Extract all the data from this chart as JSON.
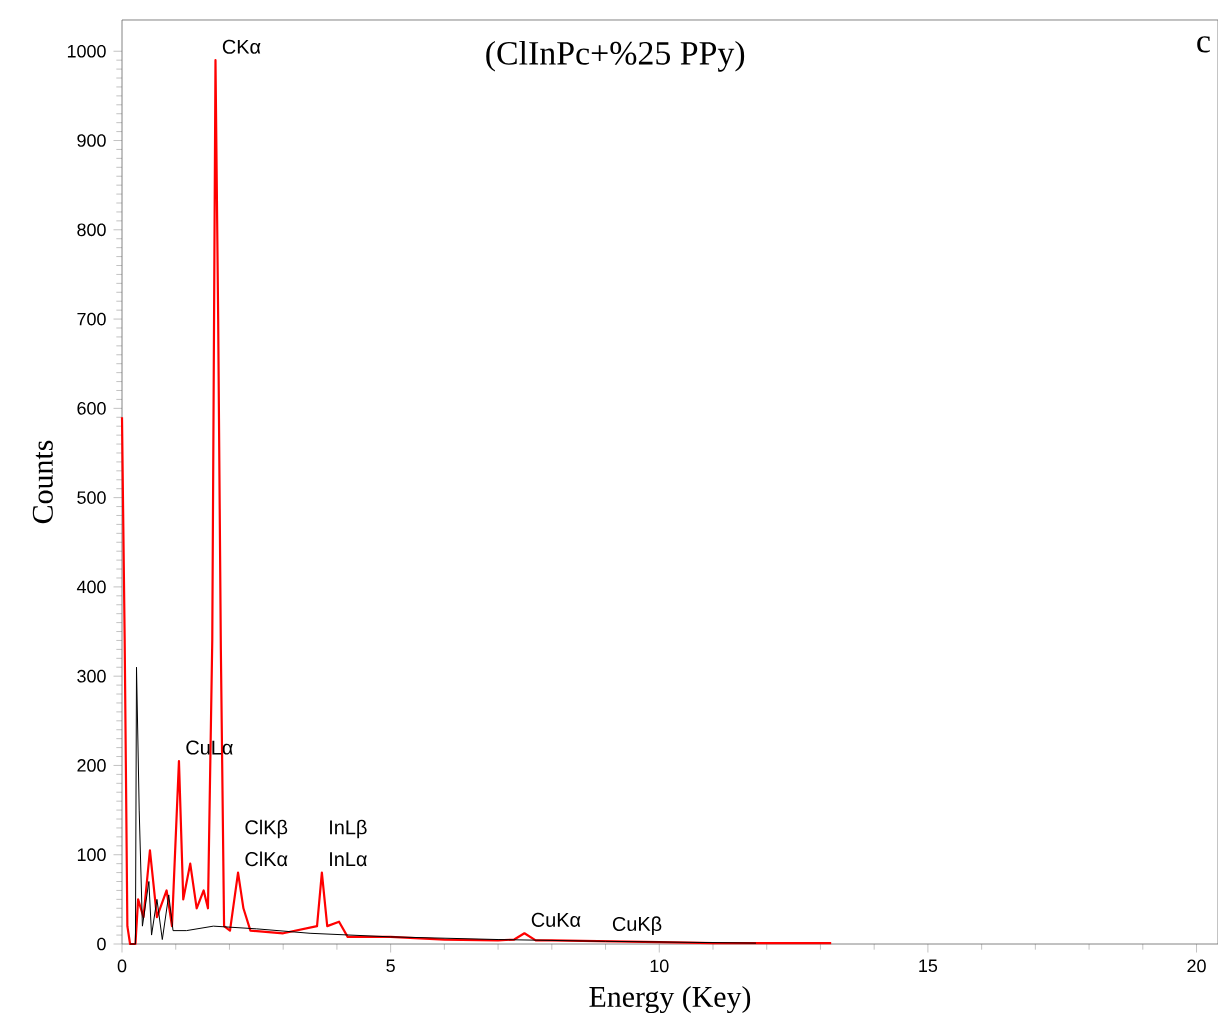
{
  "chart_data": {
    "type": "line",
    "title": "(ClInPc+%25 PPy)",
    "xlabel": "Energy (Key)",
    "ylabel": "Counts",
    "xlim": [
      0,
      20.4
    ],
    "ylim": [
      0,
      1035
    ],
    "xticks": [
      0,
      5,
      10,
      15,
      20
    ],
    "yticks": [
      0,
      100,
      200,
      300,
      400,
      500,
      600,
      700,
      800,
      900,
      1000
    ],
    "series": [
      {
        "color": "#ff0000",
        "x": [
          0,
          0.05,
          0.1,
          0.15,
          0.25,
          0.3,
          0.4,
          0.52,
          0.65,
          0.83,
          0.93,
          1.06,
          1.14,
          1.27,
          1.39,
          1.52,
          1.6,
          1.68,
          1.74,
          1.79,
          1.84,
          1.9,
          2.01,
          2.16,
          2.26,
          2.39,
          3.0,
          3.63,
          3.72,
          3.82,
          4.04,
          4.2,
          5,
          6,
          7,
          7.3,
          7.49,
          7.7,
          8,
          9,
          10,
          11,
          12,
          13.2
        ],
        "values": [
          590,
          340,
          20,
          0,
          0,
          50,
          30,
          105,
          30,
          60,
          20,
          205,
          50,
          90,
          40,
          60,
          40,
          340,
          990,
          700,
          330,
          20,
          15,
          80,
          40,
          15,
          12,
          20,
          80,
          20,
          25,
          8,
          8,
          5,
          4,
          5,
          12,
          4,
          4,
          3,
          2,
          1,
          1,
          1
        ]
      },
      {
        "color": "#000000",
        "x": [
          0.15,
          0.25,
          0.27,
          0.32,
          0.38,
          0.5,
          0.55,
          0.65,
          0.75,
          0.87,
          0.95,
          1.2,
          1.7,
          2.5,
          3.5,
          5,
          7,
          9,
          11.8
        ],
        "values": [
          0,
          0,
          310,
          150,
          20,
          70,
          10,
          50,
          5,
          55,
          15,
          15,
          20,
          17,
          12,
          8,
          5,
          3,
          1
        ]
      }
    ],
    "annotations": [
      "c",
      {
        "text": "CKα",
        "x": 1.74,
        "y": 990
      },
      {
        "text": "CuLα",
        "x": 1.06,
        "y": 205
      },
      {
        "text": "InLα",
        "x": 3.72,
        "y": 80
      },
      {
        "text": "InLβ",
        "x": 3.72,
        "y": 80
      },
      {
        "text": "ClKα",
        "x": 2.16,
        "y": 80
      },
      {
        "text": "ClKβ",
        "x": 2.16,
        "y": 80
      },
      {
        "text": "CuKα",
        "x": 7.49,
        "y": 12
      },
      {
        "text": "CuKβ",
        "x": 9,
        "y": 3
      }
    ]
  }
}
